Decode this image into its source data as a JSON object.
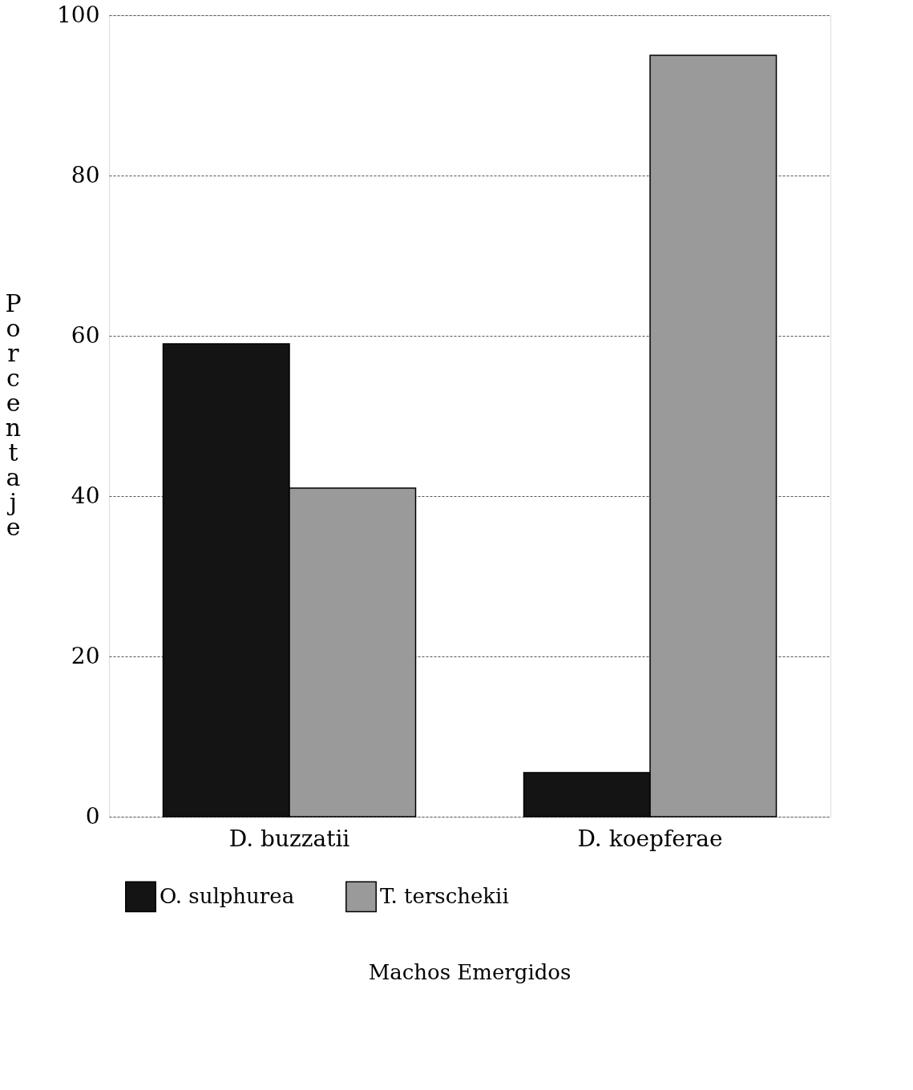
{
  "chart_data": {
    "type": "bar",
    "annotations": [
      "Machos Emergidos"
    ],
    "ylabel": "Porcentaje",
    "categories": [
      "D. buzzatii",
      "D. koepferae"
    ],
    "series": [
      {
        "name": "O. sulphurea",
        "color": "#141414",
        "values": [
          59,
          5.5
        ]
      },
      {
        "name": "T. terschekii",
        "color": "#9a9a9a",
        "values": [
          41,
          95
        ]
      }
    ],
    "ylim": [
      0,
      100
    ],
    "yticks": [
      0,
      20,
      40,
      60,
      80,
      100
    ],
    "grid": "y",
    "legend": "bottom"
  }
}
